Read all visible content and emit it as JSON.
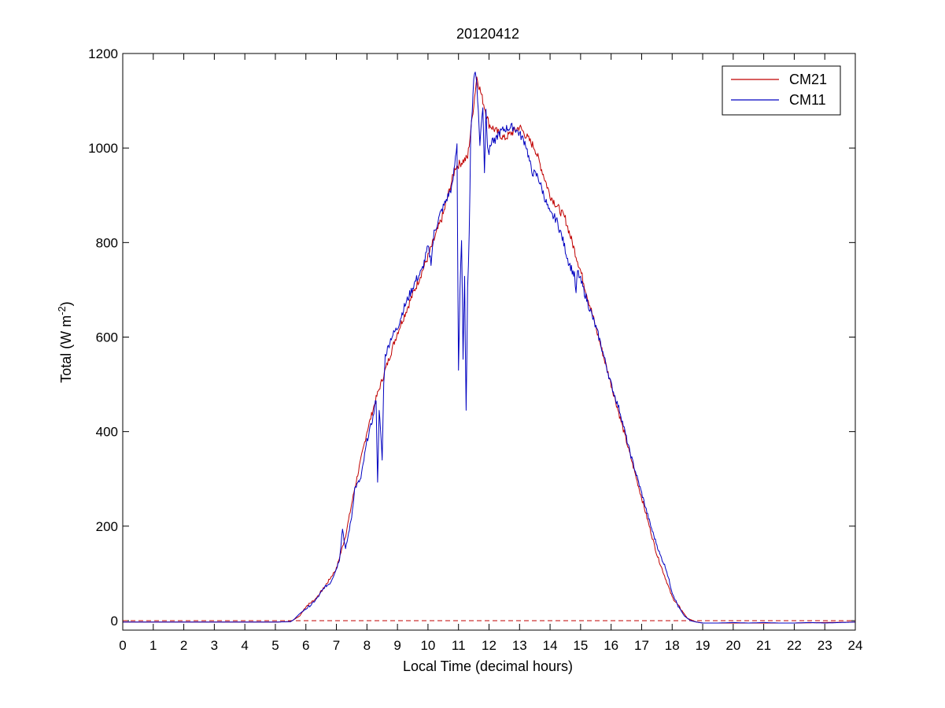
{
  "chart_data": {
    "type": "line",
    "title": "20120412",
    "xlabel": "Local Time (decimal hours)",
    "ylabel_main": "Total (W m",
    "ylabel_sup": "-2",
    "ylabel_close": ")",
    "xlim": [
      0,
      24
    ],
    "ylim": [
      -20,
      1200
    ],
    "xticks": [
      0,
      1,
      2,
      3,
      4,
      5,
      6,
      7,
      8,
      9,
      10,
      11,
      12,
      13,
      14,
      15,
      16,
      17,
      18,
      19,
      20,
      21,
      22,
      23,
      24
    ],
    "yticks": [
      0,
      200,
      400,
      600,
      800,
      1000,
      1200
    ],
    "grid": false,
    "legend_position": "top-right",
    "reference_line": {
      "y": 0,
      "style": "dashed",
      "color": "#c00000"
    },
    "series": [
      {
        "name": "CM21",
        "color": "#c00000",
        "x": [
          0,
          1,
          2,
          3,
          4,
          5,
          5.5,
          5.8,
          6,
          6.3,
          6.6,
          7,
          7.3,
          7.6,
          8,
          8.3,
          8.6,
          9,
          9.5,
          10,
          10.5,
          10.9,
          11.3,
          11.6,
          12,
          12.5,
          13,
          13.5,
          14,
          14.5,
          15,
          15.5,
          16,
          16.5,
          17,
          17.5,
          18,
          18.5,
          18.8,
          19,
          20,
          21,
          22,
          23,
          24
        ],
        "y": [
          -3,
          -3,
          -3,
          -3,
          -3,
          -3,
          -2,
          10,
          30,
          45,
          70,
          110,
          180,
          280,
          400,
          470,
          530,
          610,
          690,
          770,
          860,
          960,
          980,
          1150,
          1050,
          1020,
          1045,
          1000,
          900,
          850,
          740,
          620,
          500,
          380,
          260,
          140,
          50,
          5,
          -3,
          -5,
          -5,
          -5,
          -5,
          -4,
          -3
        ]
      },
      {
        "name": "CM11",
        "color": "#0000c0",
        "x": [
          0,
          1,
          2,
          3,
          4,
          5,
          5.5,
          5.6,
          5.8,
          6,
          6.2,
          6.4,
          6.6,
          6.8,
          7,
          7.1,
          7.2,
          7.3,
          7.5,
          7.6,
          7.8,
          8,
          8.2,
          8.3,
          8.35,
          8.4,
          8.5,
          8.55,
          8.6,
          8.8,
          9,
          9.2,
          9.4,
          9.6,
          9.8,
          10,
          10.1,
          10.2,
          10.4,
          10.6,
          10.8,
          10.95,
          11,
          11.05,
          11.1,
          11.15,
          11.2,
          11.25,
          11.3,
          11.35,
          11.4,
          11.5,
          11.55,
          11.6,
          11.7,
          11.8,
          11.85,
          11.9,
          11.95,
          12,
          12.1,
          12.2,
          12.3,
          12.5,
          12.8,
          13,
          13.2,
          13.4,
          13.6,
          13.8,
          14,
          14.2,
          14.4,
          14.6,
          14.8,
          14.85,
          14.9,
          15,
          15.3,
          15.6,
          16,
          16.3,
          16.6,
          17,
          17.3,
          17.6,
          17.8,
          18,
          18.2,
          18.4,
          18.6,
          18.8,
          19,
          19.5,
          20,
          20.5,
          21,
          21.5,
          22,
          22.5,
          23,
          23.5,
          24
        ],
        "y": [
          -3,
          -3,
          -3,
          -3,
          -3,
          -3,
          -2,
          2,
          15,
          25,
          35,
          50,
          70,
          80,
          110,
          130,
          195,
          150,
          220,
          280,
          300,
          380,
          430,
          470,
          290,
          450,
          340,
          500,
          560,
          600,
          620,
          660,
          690,
          720,
          740,
          790,
          760,
          820,
          860,
          890,
          920,
          1010,
          530,
          700,
          800,
          560,
          720,
          450,
          700,
          820,
          1020,
          1150,
          1160,
          1140,
          1010,
          1090,
          950,
          1080,
          1010,
          990,
          1020,
          1010,
          1030,
          1040,
          1045,
          1030,
          1010,
          950,
          940,
          900,
          860,
          850,
          810,
          760,
          730,
          690,
          740,
          720,
          660,
          600,
          500,
          440,
          360,
          270,
          200,
          140,
          110,
          60,
          30,
          10,
          0,
          -3,
          -5,
          -5,
          -4,
          -5,
          -4,
          -5,
          -5,
          -4,
          -5,
          -4,
          -3
        ]
      }
    ]
  }
}
